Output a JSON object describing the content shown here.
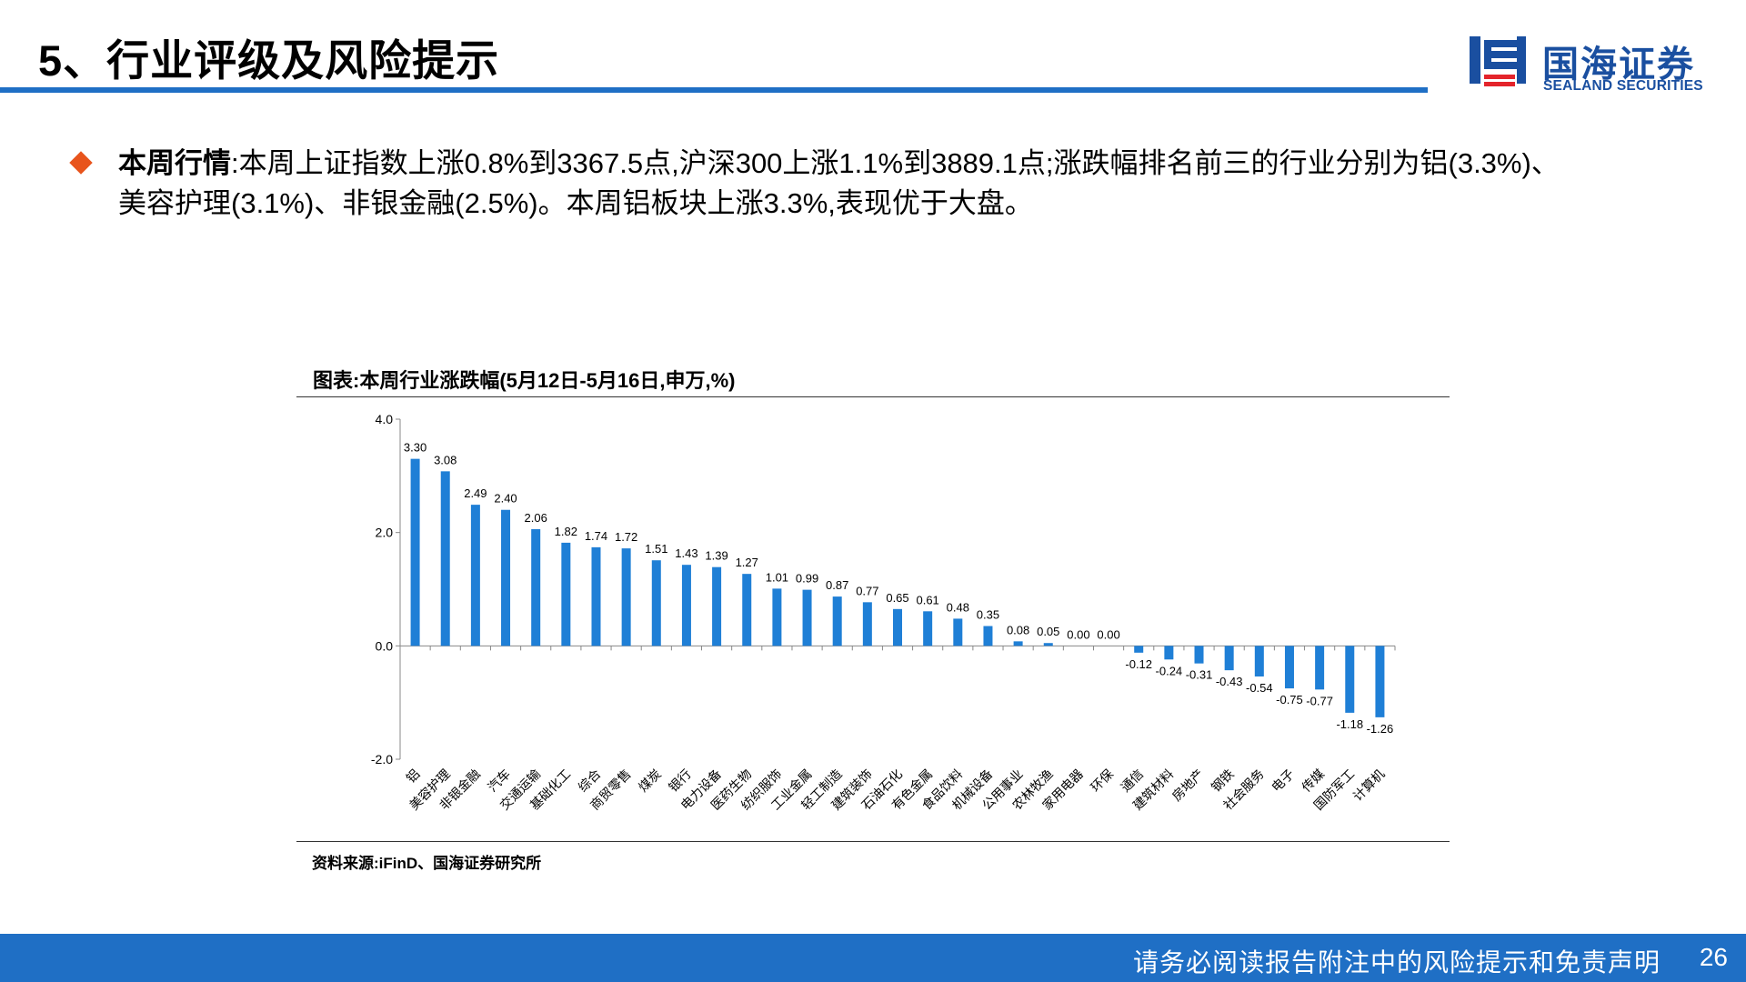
{
  "header": {
    "title": "5、行业评级及风险提示",
    "logo_cn": "国海证券",
    "logo_en": "SEALAND SECURITIES"
  },
  "summary": {
    "label": "本周行情",
    "text": ":本周上证指数上涨0.8%到3367.5点,沪深300上涨1.1%到3889.1点;涨跌幅排名前三的行业分别为铝(3.3%)、美容护理(3.1%)、非银金融(2.5%)。本周铝板块上涨3.3%,表现优于大盘。"
  },
  "chart": {
    "caption": "图表:本周行业涨跌幅(5月12日-5月16日,申万,%)",
    "source": "资料来源:iFinD、国海证券研究所"
  },
  "chart_data": {
    "type": "bar",
    "categories": [
      "铝",
      "美容护理",
      "非银金融",
      "汽车",
      "交通运输",
      "基础化工",
      "综合",
      "商贸零售",
      "煤炭",
      "银行",
      "电力设备",
      "医药生物",
      "纺织服饰",
      "工业金属",
      "轻工制造",
      "建筑装饰",
      "石油石化",
      "有色金属",
      "食品饮料",
      "机械设备",
      "公用事业",
      "农林牧渔",
      "家用电器",
      "环保",
      "通信",
      "建筑材料",
      "房地产",
      "钢铁",
      "社会服务",
      "电子",
      "传媒",
      "国防军工",
      "计算机"
    ],
    "values": [
      3.3,
      3.08,
      2.49,
      2.4,
      2.06,
      1.82,
      1.74,
      1.72,
      1.51,
      1.43,
      1.39,
      1.27,
      1.01,
      0.99,
      0.87,
      0.77,
      0.65,
      0.61,
      0.48,
      0.35,
      0.08,
      0.05,
      0.0,
      0.0,
      -0.12,
      -0.24,
      -0.31,
      -0.43,
      -0.54,
      -0.75,
      -0.77,
      -1.18,
      -1.26
    ],
    "value_labels": [
      "3.30",
      "3.08",
      "2.49",
      "2.40",
      "2.06",
      "1.82",
      "1.74",
      "1.72",
      "1.51",
      "1.43",
      "1.39",
      "1.27",
      "1.01",
      "0.99",
      "0.87",
      "0.77",
      "0.65",
      "0.61",
      "0.48",
      "0.35",
      "0.08",
      "0.05",
      "0.00",
      "0.00",
      "-0.12",
      "-0.24",
      "-0.31",
      "-0.43",
      "-0.54",
      "-0.75",
      "-0.77",
      "-1.18",
      "-1.26"
    ],
    "ylim": [
      -2.0,
      4.0
    ],
    "yticks": [
      "-2.0",
      "0.0",
      "2.0",
      "4.0"
    ],
    "ytick_values": [
      -2.0,
      0.0,
      2.0,
      4.0
    ],
    "bar_color": "#1f7fd6",
    "grid": false,
    "legend": "none"
  },
  "footer": {
    "disclaimer": "请务必阅读报告附注中的风险提示和免责声明",
    "page": "26"
  },
  "colors": {
    "accent": "#1f6fc5",
    "bullet": "#e8541c",
    "logo": "#1a4fa0"
  }
}
